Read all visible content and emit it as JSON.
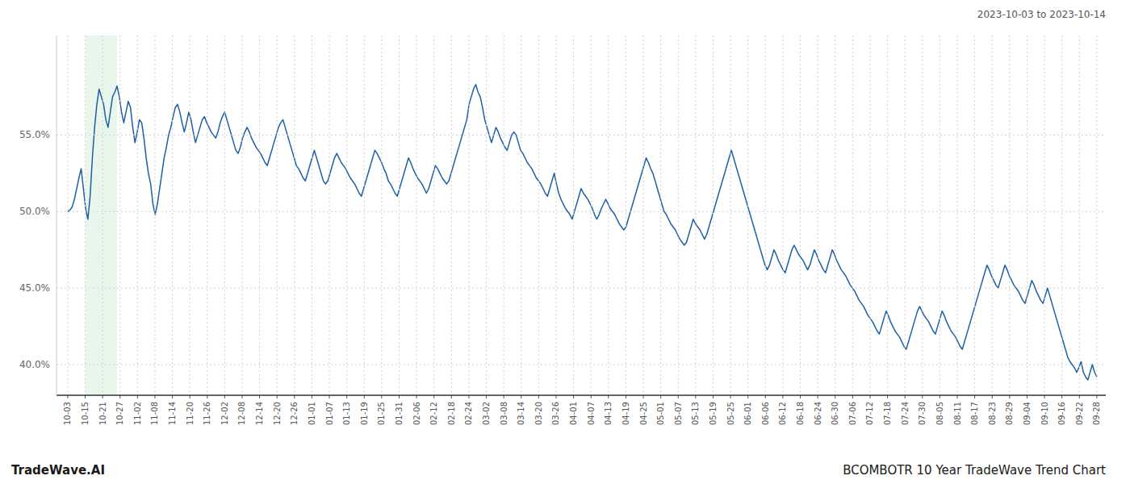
{
  "chart_data": {
    "type": "line",
    "title": "BCOMBOTR 10 Year TradeWave Trend Chart",
    "subtitle": "2023-10-03 to 2023-10-14",
    "annotations": [
      "TradeWave.AI"
    ],
    "color": "#1f5fa6",
    "grid": true,
    "line_style": "solid",
    "highlight": {
      "x": [
        8,
        22
      ],
      "color": "#d4edda"
    },
    "xlim": [
      -5,
      463
    ],
    "xticks": [
      {
        "value": 0,
        "label": "10-03"
      },
      {
        "value": 7.779661,
        "label": "10-15"
      },
      {
        "value": 15.559322,
        "label": "10-21"
      },
      {
        "value": 23.338983,
        "label": "10-27"
      },
      {
        "value": 31.118644,
        "label": "11-02"
      },
      {
        "value": 38.898305,
        "label": "11-08"
      },
      {
        "value": 46.677966,
        "label": "11-14"
      },
      {
        "value": 54.457627,
        "label": "11-20"
      },
      {
        "value": 62.237288,
        "label": "11-26"
      },
      {
        "value": 70.016949,
        "label": "12-02"
      },
      {
        "value": 77.79661,
        "label": "12-08"
      },
      {
        "value": 85.576271,
        "label": "12-14"
      },
      {
        "value": 93.355932,
        "label": "12-20"
      },
      {
        "value": 101.135593,
        "label": "12-26"
      },
      {
        "value": 108.915254,
        "label": "01-01"
      },
      {
        "value": 116.694915,
        "label": "01-07"
      },
      {
        "value": 124.474576,
        "label": "01-13"
      },
      {
        "value": 132.254237,
        "label": "01-19"
      },
      {
        "value": 140.033898,
        "label": "01-25"
      },
      {
        "value": 147.813559,
        "label": "01-31"
      },
      {
        "value": 155.59322,
        "label": "02-06"
      },
      {
        "value": 163.372881,
        "label": "02-12"
      },
      {
        "value": 171.152542,
        "label": "02-18"
      },
      {
        "value": 178.932203,
        "label": "02-24"
      },
      {
        "value": 186.711864,
        "label": "03-02"
      },
      {
        "value": 194.491525,
        "label": "03-08"
      },
      {
        "value": 202.271186,
        "label": "03-14"
      },
      {
        "value": 210.050847,
        "label": "03-20"
      },
      {
        "value": 217.830508,
        "label": "03-26"
      },
      {
        "value": 225.610169,
        "label": "04-01"
      },
      {
        "value": 233.389831,
        "label": "04-07"
      },
      {
        "value": 241.169492,
        "label": "04-13"
      },
      {
        "value": 248.949153,
        "label": "04-19"
      },
      {
        "value": 256.728814,
        "label": "04-25"
      },
      {
        "value": 264.508475,
        "label": "05-01"
      },
      {
        "value": 272.288136,
        "label": "05-07"
      },
      {
        "value": 280.067797,
        "label": "05-13"
      },
      {
        "value": 287.847458,
        "label": "05-19"
      },
      {
        "value": 295.627119,
        "label": "05-25"
      },
      {
        "value": 303.40678,
        "label": "06-01"
      },
      {
        "value": 311.186441,
        "label": "06-06"
      },
      {
        "value": 318.966102,
        "label": "06-12"
      },
      {
        "value": 326.745763,
        "label": "06-18"
      },
      {
        "value": 334.525424,
        "label": "06-24"
      },
      {
        "value": 342.305085,
        "label": "06-30"
      },
      {
        "value": 350.084746,
        "label": "07-06"
      },
      {
        "value": 357.864407,
        "label": "07-12"
      },
      {
        "value": 365.644068,
        "label": "07-18"
      },
      {
        "value": 373.423729,
        "label": "07-24"
      },
      {
        "value": 381.20339,
        "label": "07-30"
      },
      {
        "value": 388.983051,
        "label": "08-05"
      },
      {
        "value": 396.762712,
        "label": "08-11"
      },
      {
        "value": 404.542373,
        "label": "08-17"
      },
      {
        "value": 412.322034,
        "label": "08-23"
      },
      {
        "value": 420.101695,
        "label": "08-29"
      },
      {
        "value": 427.881356,
        "label": "09-04"
      },
      {
        "value": 435.661017,
        "label": "09-10"
      },
      {
        "value": 443.440678,
        "label": "09-16"
      },
      {
        "value": 451.220339,
        "label": "09-22"
      },
      {
        "value": 459,
        "label": "09-28"
      }
    ],
    "ylim": [
      38.0,
      61.5
    ],
    "yticks": [
      {
        "value": 40.0,
        "label": "40.0%"
      },
      {
        "value": 45.0,
        "label": "45.0%"
      },
      {
        "value": 50.0,
        "label": "50.0%"
      },
      {
        "value": 55.0,
        "label": "55.0%"
      }
    ],
    "values": [
      50.0,
      50.1,
      50.3,
      50.8,
      51.5,
      52.2,
      52.8,
      51.5,
      50.2,
      49.5,
      51.0,
      53.5,
      55.5,
      57.0,
      58.0,
      57.5,
      57.0,
      56.0,
      55.5,
      56.5,
      57.5,
      57.8,
      58.2,
      57.5,
      56.5,
      55.8,
      56.5,
      57.2,
      56.8,
      55.5,
      54.5,
      55.2,
      56.0,
      55.8,
      54.8,
      53.5,
      52.5,
      51.8,
      50.5,
      49.8,
      50.5,
      51.5,
      52.5,
      53.5,
      54.2,
      55.0,
      55.5,
      56.2,
      56.8,
      57.0,
      56.5,
      55.8,
      55.2,
      55.8,
      56.5,
      56.0,
      55.2,
      54.5,
      55.0,
      55.5,
      56.0,
      56.2,
      55.8,
      55.5,
      55.2,
      55.0,
      54.8,
      55.2,
      55.8,
      56.2,
      56.5,
      56.0,
      55.5,
      55.0,
      54.5,
      54.0,
      53.8,
      54.2,
      54.8,
      55.2,
      55.5,
      55.2,
      54.8,
      54.5,
      54.2,
      54.0,
      53.8,
      53.5,
      53.2,
      53.0,
      53.5,
      54.0,
      54.5,
      55.0,
      55.5,
      55.8,
      56.0,
      55.5,
      55.0,
      54.5,
      54.0,
      53.5,
      53.0,
      52.8,
      52.5,
      52.2,
      52.0,
      52.5,
      53.0,
      53.5,
      54.0,
      53.5,
      53.0,
      52.5,
      52.0,
      51.8,
      52.0,
      52.5,
      53.0,
      53.5,
      53.8,
      53.5,
      53.2,
      53.0,
      52.8,
      52.5,
      52.2,
      52.0,
      51.8,
      51.5,
      51.2,
      51.0,
      51.5,
      52.0,
      52.5,
      53.0,
      53.5,
      54.0,
      53.8,
      53.5,
      53.2,
      52.8,
      52.5,
      52.0,
      51.8,
      51.5,
      51.2,
      51.0,
      51.5,
      52.0,
      52.5,
      53.0,
      53.5,
      53.2,
      52.8,
      52.5,
      52.2,
      52.0,
      51.8,
      51.5,
      51.2,
      51.5,
      52.0,
      52.5,
      53.0,
      52.8,
      52.5,
      52.2,
      52.0,
      51.8,
      52.0,
      52.5,
      53.0,
      53.5,
      54.0,
      54.5,
      55.0,
      55.5,
      56.0,
      57.0,
      57.5,
      58.0,
      58.3,
      57.8,
      57.5,
      56.8,
      56.0,
      55.5,
      55.0,
      54.5,
      55.0,
      55.5,
      55.2,
      54.8,
      54.5,
      54.2,
      54.0,
      54.5,
      55.0,
      55.2,
      55.0,
      54.5,
      54.0,
      53.8,
      53.5,
      53.2,
      53.0,
      52.8,
      52.5,
      52.2,
      52.0,
      51.8,
      51.5,
      51.2,
      51.0,
      51.5,
      52.0,
      52.5,
      51.8,
      51.2,
      50.8,
      50.5,
      50.2,
      50.0,
      49.8,
      49.5,
      50.0,
      50.5,
      51.0,
      51.5,
      51.2,
      51.0,
      50.8,
      50.5,
      50.2,
      49.8,
      49.5,
      49.8,
      50.2,
      50.5,
      50.8,
      50.5,
      50.2,
      50.0,
      49.8,
      49.5,
      49.2,
      49.0,
      48.8,
      49.0,
      49.5,
      50.0,
      50.5,
      51.0,
      51.5,
      52.0,
      52.5,
      53.0,
      53.5,
      53.2,
      52.8,
      52.5,
      52.0,
      51.5,
      51.0,
      50.5,
      50.0,
      49.8,
      49.5,
      49.2,
      49.0,
      48.8,
      48.5,
      48.2,
      48.0,
      47.8,
      48.0,
      48.5,
      49.0,
      49.5,
      49.2,
      49.0,
      48.8,
      48.5,
      48.2,
      48.5,
      49.0,
      49.5,
      50.0,
      50.5,
      51.0,
      51.5,
      52.0,
      52.5,
      53.0,
      53.5,
      54.0,
      53.5,
      53.0,
      52.5,
      52.0,
      51.5,
      51.0,
      50.5,
      50.0,
      49.5,
      49.0,
      48.5,
      48.0,
      47.5,
      47.0,
      46.5,
      46.2,
      46.5,
      47.0,
      47.5,
      47.2,
      46.8,
      46.5,
      46.2,
      46.0,
      46.5,
      47.0,
      47.5,
      47.8,
      47.5,
      47.2,
      47.0,
      46.8,
      46.5,
      46.2,
      46.5,
      47.0,
      47.5,
      47.2,
      46.8,
      46.5,
      46.2,
      46.0,
      46.5,
      47.0,
      47.5,
      47.2,
      46.8,
      46.5,
      46.2,
      46.0,
      45.8,
      45.5,
      45.2,
      45.0,
      44.8,
      44.5,
      44.2,
      44.0,
      43.8,
      43.5,
      43.2,
      43.0,
      42.8,
      42.5,
      42.2,
      42.0,
      42.5,
      43.0,
      43.5,
      43.2,
      42.8,
      42.5,
      42.2,
      42.0,
      41.8,
      41.5,
      41.2,
      41.0,
      41.5,
      42.0,
      42.5,
      43.0,
      43.5,
      43.8,
      43.5,
      43.2,
      43.0,
      42.8,
      42.5,
      42.2,
      42.0,
      42.5,
      43.0,
      43.5,
      43.2,
      42.8,
      42.5,
      42.2,
      42.0,
      41.8,
      41.5,
      41.2,
      41.0,
      41.5,
      42.0,
      42.5,
      43.0,
      43.5,
      44.0,
      44.5,
      45.0,
      45.5,
      46.0,
      46.5,
      46.2,
      45.8,
      45.5,
      45.2,
      45.0,
      45.5,
      46.0,
      46.5,
      46.2,
      45.8,
      45.5,
      45.2,
      45.0,
      44.8,
      44.5,
      44.2,
      44.0,
      44.5,
      45.0,
      45.5,
      45.2,
      44.8,
      44.5,
      44.2,
      44.0,
      44.5,
      45.0,
      44.5,
      44.0,
      43.5,
      43.0,
      42.5,
      42.0,
      41.5,
      41.0,
      40.5,
      40.2,
      40.0,
      39.8,
      39.5,
      39.8,
      40.2,
      39.5,
      39.2,
      39.0,
      39.5,
      40.0,
      39.5,
      39.2
    ]
  }
}
